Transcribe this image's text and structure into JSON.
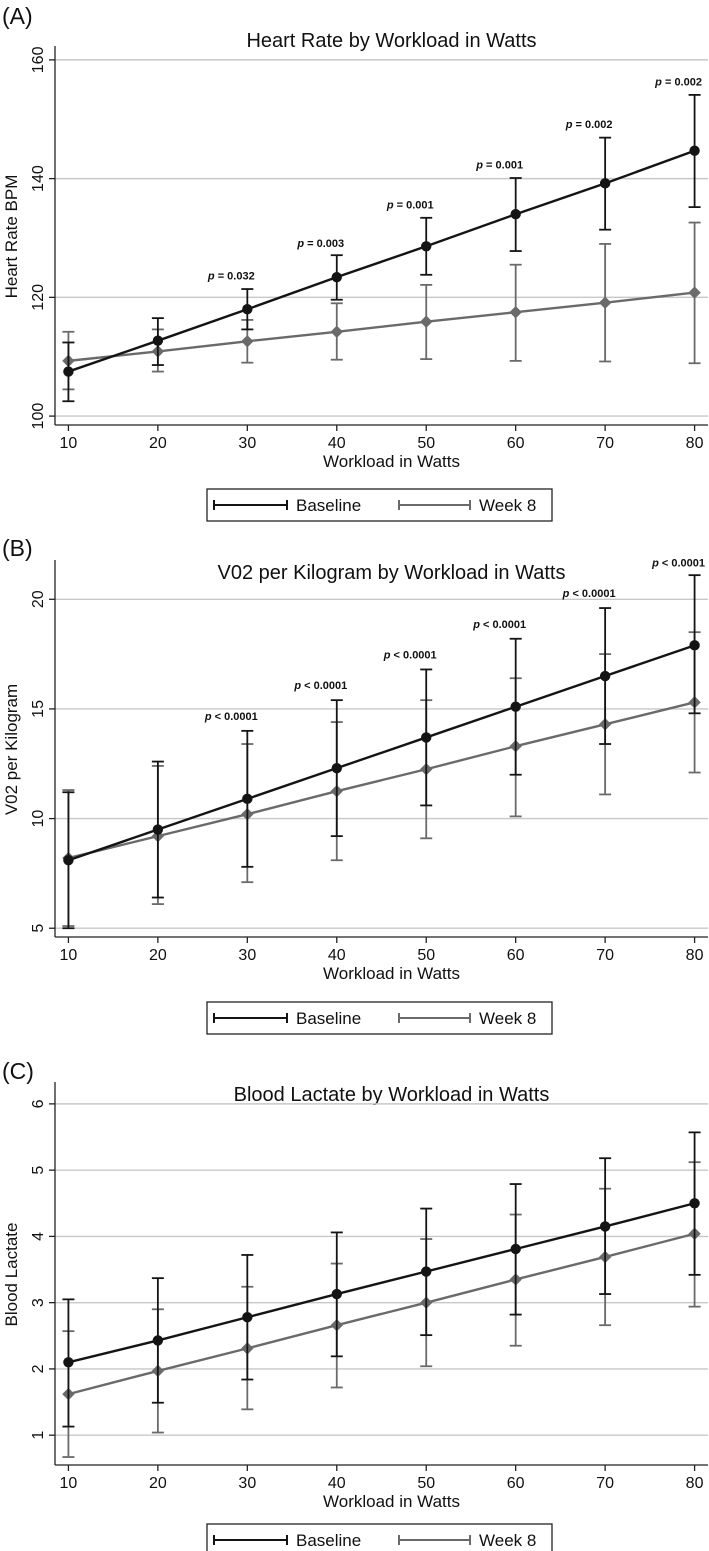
{
  "chart_data": [
    {
      "type": "line",
      "panel_label": "(A)",
      "title": "Heart Rate by Workload in Watts",
      "xlabel": "Workload in Watts",
      "ylabel": "Heart Rate BPM",
      "x": [
        10,
        20,
        30,
        40,
        50,
        60,
        70,
        80
      ],
      "xticks": [
        10,
        20,
        30,
        40,
        50,
        60,
        70,
        80
      ],
      "xlim": [
        8.5,
        81.5
      ],
      "yticks": [
        100,
        120,
        140,
        160
      ],
      "ylim": [
        98.5,
        162
      ],
      "grid": true,
      "legend_position": "bottom",
      "series": [
        {
          "name": "Baseline",
          "color": "#141414",
          "marker": "circle",
          "values": [
            107.5,
            112.7,
            118.0,
            123.4,
            128.6,
            134.0,
            139.2,
            144.7
          ],
          "err_low": [
            102.5,
            108.6,
            114.6,
            119.6,
            123.8,
            127.8,
            131.4,
            135.2
          ],
          "err_high": [
            112.4,
            116.5,
            121.4,
            127.1,
            133.4,
            140.1,
            146.9,
            154.1
          ]
        },
        {
          "name": "Week 8",
          "color": "#6a6a6a",
          "marker": "diamond",
          "values": [
            109.3,
            110.9,
            112.6,
            114.2,
            115.9,
            117.5,
            119.1,
            120.8
          ],
          "err_low": [
            104.5,
            107.5,
            109.0,
            109.5,
            109.6,
            109.3,
            109.2,
            108.9
          ],
          "err_high": [
            114.2,
            114.6,
            116.2,
            119.0,
            122.1,
            125.5,
            129.0,
            132.6
          ]
        }
      ],
      "annotations": [
        {
          "x": 30,
          "y": 123.0,
          "label": "p",
          "value": " = 0.032"
        },
        {
          "x": 40,
          "y": 128.5,
          "label": "p",
          "value": " = 0.003"
        },
        {
          "x": 50,
          "y": 135.0,
          "label": "p",
          "value": " = 0.001"
        },
        {
          "x": 60,
          "y": 141.7,
          "label": "p",
          "value": " = 0.001"
        },
        {
          "x": 70,
          "y": 148.5,
          "label": "p",
          "value": " = 0.002"
        },
        {
          "x": 80,
          "y": 155.7,
          "label": "p",
          "value": " = 0.002"
        }
      ]
    },
    {
      "type": "line",
      "panel_label": "(B)",
      "title": "V02 per Kilogram by Workload in Watts",
      "xlabel": "Workload in Watts",
      "ylabel": "V02 per Kilogram",
      "x": [
        10,
        20,
        30,
        40,
        50,
        60,
        70,
        80
      ],
      "xticks": [
        10,
        20,
        30,
        40,
        50,
        60,
        70,
        80
      ],
      "xlim": [
        8.5,
        81.5
      ],
      "yticks": [
        5,
        10,
        15,
        20
      ],
      "ylim": [
        4.6,
        21.7
      ],
      "grid": true,
      "legend_position": "bottom",
      "series": [
        {
          "name": "Baseline",
          "color": "#141414",
          "marker": "circle",
          "values": [
            8.1,
            9.5,
            10.9,
            12.3,
            13.7,
            15.1,
            16.5,
            17.9
          ],
          "err_low": [
            5.0,
            6.4,
            7.8,
            9.2,
            10.6,
            12.0,
            13.4,
            14.8
          ],
          "err_high": [
            11.2,
            12.6,
            14.0,
            15.4,
            16.8,
            18.2,
            19.6,
            21.1
          ]
        },
        {
          "name": "Week 8",
          "color": "#6a6a6a",
          "marker": "diamond",
          "values": [
            8.2,
            9.2,
            10.2,
            11.25,
            12.25,
            13.3,
            14.3,
            15.3
          ],
          "err_low": [
            5.1,
            6.1,
            7.1,
            8.1,
            9.1,
            10.1,
            11.1,
            12.1
          ],
          "err_high": [
            11.3,
            12.4,
            13.4,
            14.4,
            15.4,
            16.4,
            17.5,
            18.5
          ]
        }
      ],
      "annotations": [
        {
          "x": 30,
          "y": 14.5,
          "label": "p",
          "value": " < 0.0001"
        },
        {
          "x": 40,
          "y": 15.9,
          "label": "p",
          "value": " < 0.0001"
        },
        {
          "x": 50,
          "y": 17.3,
          "label": "p",
          "value": " < 0.0001"
        },
        {
          "x": 60,
          "y": 18.7,
          "label": "p",
          "value": " < 0.0001"
        },
        {
          "x": 70,
          "y": 20.1,
          "label": "p",
          "value": " < 0.0001"
        },
        {
          "x": 80,
          "y": 21.5,
          "label": "p",
          "value": " < 0.0001"
        }
      ]
    },
    {
      "type": "line",
      "panel_label": "(C)",
      "title": "Blood Lactate by Workload in Watts",
      "xlabel": "Workload in Watts",
      "ylabel": "Blood Lactate",
      "x": [
        10,
        20,
        30,
        40,
        50,
        60,
        70,
        80
      ],
      "xticks": [
        10,
        20,
        30,
        40,
        50,
        60,
        70,
        80
      ],
      "xlim": [
        8.5,
        81.5
      ],
      "yticks": [
        1,
        2,
        3,
        4,
        5,
        6
      ],
      "ylim": [
        0.55,
        6.3
      ],
      "grid": true,
      "legend_position": "bottom",
      "series": [
        {
          "name": "Baseline",
          "color": "#141414",
          "marker": "circle",
          "values": [
            2.1,
            2.43,
            2.78,
            3.13,
            3.47,
            3.81,
            4.15,
            4.5
          ],
          "err_low": [
            1.13,
            1.49,
            1.84,
            2.19,
            2.51,
            2.82,
            3.13,
            3.42
          ],
          "err_high": [
            3.05,
            3.37,
            3.72,
            4.06,
            4.42,
            4.79,
            5.18,
            5.57
          ]
        },
        {
          "name": "Week 8",
          "color": "#6a6a6a",
          "marker": "diamond",
          "values": [
            1.62,
            1.97,
            2.31,
            2.66,
            3.0,
            3.35,
            3.69,
            4.04
          ],
          "err_low": [
            0.67,
            1.04,
            1.39,
            1.72,
            2.04,
            2.35,
            2.66,
            2.94
          ],
          "err_high": [
            2.57,
            2.9,
            3.24,
            3.59,
            3.96,
            4.33,
            4.72,
            5.12
          ]
        }
      ],
      "annotations": []
    }
  ]
}
